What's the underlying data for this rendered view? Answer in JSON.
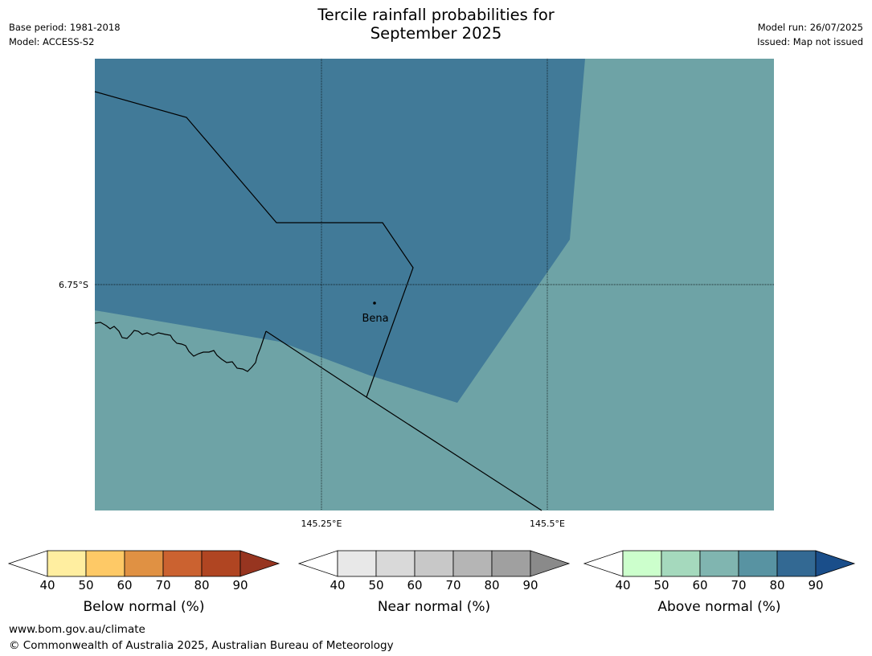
{
  "header": {
    "title_line1": "Tercile rainfall probabilities for",
    "title_line2": "September 2025",
    "base_period": "Base period: 1981-2018",
    "model": "Model: ACCESS-S2",
    "model_run": "Model run: 26/07/2025",
    "issued": "Issued: Map not issued"
  },
  "map": {
    "lat_labels": [
      "6.75°S"
    ],
    "lon_labels": [
      "145.25°E",
      "145.5°E"
    ],
    "places": [
      {
        "name": "Bena"
      }
    ],
    "colors": {
      "above_70_80": "#417a98",
      "above_60_70": "#6ea3a6",
      "boundary": "#000000"
    }
  },
  "legends": [
    {
      "label": "Below normal (%)",
      "ticks": [
        "40",
        "50",
        "60",
        "70",
        "80",
        "90"
      ],
      "colors": [
        "#ffffff",
        "#ffeea0",
        "#fec966",
        "#e09143",
        "#cb6230",
        "#b04522",
        "#973520"
      ]
    },
    {
      "label": "Near normal (%)",
      "ticks": [
        "40",
        "50",
        "60",
        "70",
        "80",
        "90"
      ],
      "colors": [
        "#ffffff",
        "#e8e8e8",
        "#d9d9d9",
        "#c8c8c8",
        "#b5b5b5",
        "#a0a0a0",
        "#8a8a8a"
      ]
    },
    {
      "label": "Above normal (%)",
      "ticks": [
        "40",
        "50",
        "60",
        "70",
        "80",
        "90"
      ],
      "colors": [
        "#ffffff",
        "#ccffcc",
        "#a5d9bd",
        "#80b5b0",
        "#5893a2",
        "#336993",
        "#1a4e8a"
      ]
    }
  ],
  "footer": {
    "url": "www.bom.gov.au/climate",
    "copyright": "© Commonwealth of Australia 2025, Australian Bureau of Meteorology"
  }
}
